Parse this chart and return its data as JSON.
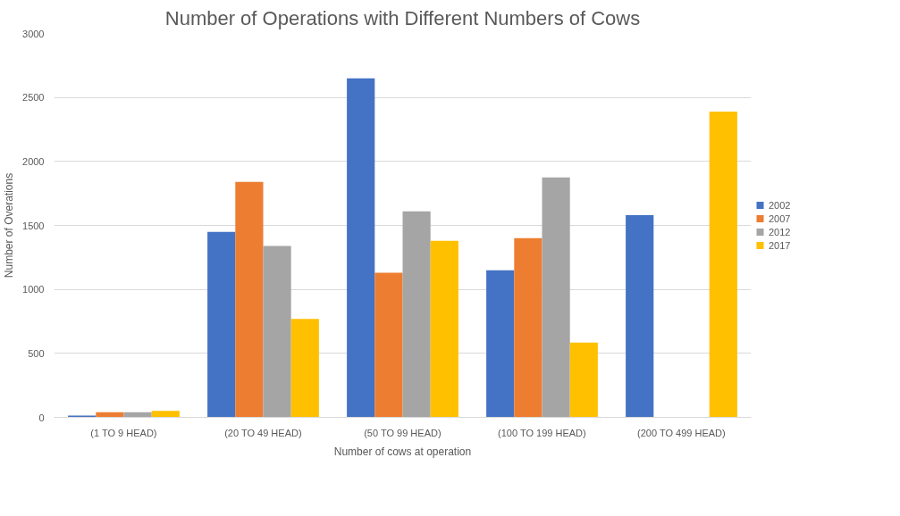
{
  "chart_data": {
    "type": "bar",
    "title": "Number of Operations with Different Numbers of Cows",
    "xlabel": "Number of cows at operation",
    "ylabel": "Number of Overations",
    "categories": [
      "(1 TO 9 HEAD)",
      "(20 TO 49 HEAD)",
      "(50 TO 99 HEAD)",
      "(100 TO 199 HEAD)",
      "(200 TO 499 HEAD)"
    ],
    "series": [
      {
        "name": "2002",
        "color": "#4472c4",
        "values": [
          14,
          1450,
          2650,
          1150,
          1580
        ]
      },
      {
        "name": "2007",
        "color": "#ed7d31",
        "values": [
          40,
          1840,
          1130,
          1400,
          null
        ]
      },
      {
        "name": "2012",
        "color": "#a5a5a5",
        "values": [
          40,
          1340,
          1610,
          1875,
          null
        ]
      },
      {
        "name": "2017",
        "color": "#ffc000",
        "values": [
          50,
          770,
          1380,
          585,
          2390
        ]
      }
    ],
    "ylim": [
      0,
      3000
    ],
    "yticks": [
      0,
      500,
      1000,
      1500,
      2000,
      2500,
      3000
    ],
    "grid": "y",
    "legend": "right"
  }
}
